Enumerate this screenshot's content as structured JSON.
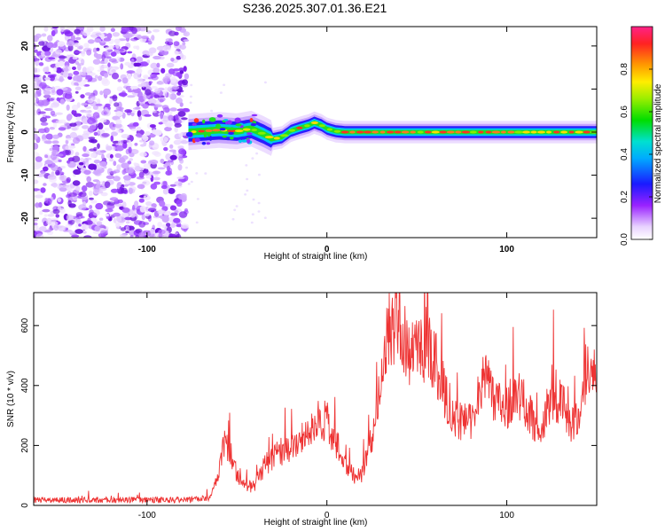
{
  "figure": {
    "title": "S236.2025.307.01.36.E21"
  },
  "chart_data": [
    {
      "type": "heatmap",
      "name": "spectrogram",
      "xlabel": "Height of straight line (km)",
      "ylabel": "Frequency (Hz)",
      "xlim": [
        -163,
        150
      ],
      "ylim": [
        -24.5,
        24.5
      ],
      "x_ticks": [
        -100,
        0,
        100
      ],
      "y_ticks": [
        -20,
        -10,
        0,
        10,
        20
      ],
      "colorbar": {
        "label": "Normalized spectral amplitude",
        "range": [
          0,
          1
        ],
        "ticks": [
          "0.0",
          "0.2",
          "0.4",
          "0.6",
          "0.8"
        ],
        "tick_values": [
          0.0,
          0.2,
          0.4,
          0.6,
          0.8
        ]
      },
      "noise_region_x": [
        -163,
        -78
      ],
      "ridge": {
        "x": [
          -77,
          -70,
          -60,
          -50,
          -42,
          -35,
          -30,
          -25,
          -20,
          -15,
          -10,
          -7,
          -3,
          0,
          5,
          10,
          20,
          40,
          60,
          80,
          100,
          120,
          140,
          150
        ],
        "y": [
          0,
          0.2,
          0.5,
          0.2,
          0.8,
          -0.5,
          -1.6,
          -1.2,
          0.3,
          1.0,
          1.6,
          2.2,
          1.6,
          0.8,
          0.2,
          0,
          0,
          0,
          0,
          0,
          0,
          0,
          0,
          0
        ]
      }
    },
    {
      "type": "line",
      "name": "snr",
      "xlabel": "Height of straight line (km)",
      "ylabel": "SNR (10 * v/v)",
      "xlim": [
        -163,
        150
      ],
      "ylim": [
        0,
        710
      ],
      "x_ticks": [
        -100,
        0,
        100
      ],
      "y_ticks": [
        0,
        200,
        400,
        600
      ],
      "color": "#ee3333",
      "envelope": {
        "x": [
          -163,
          -80,
          -65,
          -60,
          -57,
          -53,
          -50,
          -45,
          -40,
          -35,
          -30,
          -25,
          -20,
          -15,
          -10,
          -5,
          0,
          5,
          10,
          15,
          20,
          25,
          30,
          35,
          40,
          45,
          50,
          55,
          60,
          65,
          70,
          75,
          80,
          85,
          90,
          95,
          100,
          105,
          110,
          115,
          120,
          125,
          130,
          135,
          140,
          145,
          150
        ],
        "y": [
          18,
          18,
          25,
          120,
          200,
          170,
          100,
          60,
          70,
          130,
          160,
          180,
          200,
          230,
          250,
          280,
          280,
          210,
          140,
          90,
          110,
          230,
          420,
          600,
          600,
          520,
          500,
          540,
          480,
          390,
          300,
          270,
          290,
          400,
          410,
          330,
          330,
          390,
          340,
          280,
          280,
          380,
          350,
          260,
          300,
          480,
          470
        ]
      }
    }
  ]
}
